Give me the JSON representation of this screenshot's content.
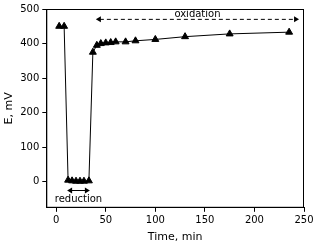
{
  "chart_data": {
    "type": "line",
    "x_label": "Time, min",
    "y_label": "E, mV",
    "series": [
      {
        "name": "E",
        "color": "#000000",
        "marker": "triangle",
        "line_style": "solid",
        "x": [
          3,
          8,
          12,
          16,
          20,
          24,
          28,
          33,
          37,
          41,
          45,
          50,
          55,
          60,
          70,
          80,
          100,
          130,
          175,
          235
        ],
        "values": [
          450,
          450,
          5,
          3,
          2,
          2,
          2,
          3,
          375,
          395,
          400,
          402,
          403,
          405,
          405,
          408,
          412,
          420,
          428,
          433
        ]
      }
    ],
    "xlim": [
      -10,
      250
    ],
    "xticks": [
      0,
      50,
      100,
      150,
      200,
      250
    ],
    "ylim": [
      -75,
      500
    ],
    "yticks": [
      0,
      100,
      200,
      300,
      400,
      500
    ],
    "grid": false,
    "annotations": [
      {
        "text": "reduction",
        "x_start": 11,
        "x_end": 34,
        "y": -25,
        "label_y": -52,
        "line_style": "solid"
      },
      {
        "text": "oxidation",
        "x_start": 40,
        "x_end": 245,
        "y": 470,
        "label_y": 485,
        "line_style": "dashed"
      }
    ]
  }
}
